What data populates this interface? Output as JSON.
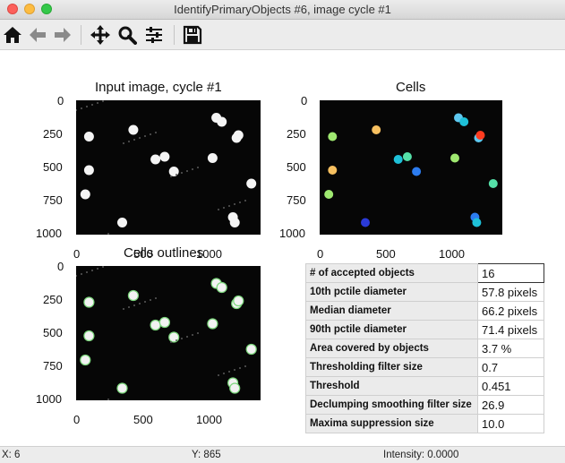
{
  "window": {
    "title": "IdentifyPrimaryObjects #6, image cycle #1"
  },
  "toolbar": {
    "buttons": [
      "home-icon",
      "back-arrow-icon",
      "forward-arrow-icon",
      "pan-icon",
      "zoom-icon",
      "configure-subplots-icon",
      "save-icon"
    ]
  },
  "plots": {
    "input": {
      "title": "Input image, cycle #1",
      "yticks": [
        "0",
        "250",
        "500",
        "750",
        "1000"
      ],
      "xticks": [
        "0",
        "500",
        "1000"
      ]
    },
    "cells": {
      "title": "Cells",
      "yticks": [
        "0",
        "250",
        "500",
        "750",
        "1000"
      ],
      "xticks": [
        "0",
        "500",
        "1000"
      ]
    },
    "outlines": {
      "title": "Cells outlines",
      "yticks": [
        "0",
        "250",
        "500",
        "750",
        "1000"
      ],
      "xticks": [
        "0",
        "500",
        "1000"
      ]
    }
  },
  "measurements": [
    {
      "label": "# of accepted objects",
      "value": "16"
    },
    {
      "label": "10th pctile diameter",
      "value": "57.8 pixels"
    },
    {
      "label": "Median diameter",
      "value": "66.2 pixels"
    },
    {
      "label": "90th pctile diameter",
      "value": "71.4 pixels"
    },
    {
      "label": "Area covered by objects",
      "value": "3.7 %"
    },
    {
      "label": "Thresholding filter size",
      "value": "0.7"
    },
    {
      "label": "Threshold",
      "value": "0.451"
    },
    {
      "label": "Declumping smoothing filter size",
      "value": "26.9"
    },
    {
      "label": "Maxima suppression size",
      "value": "10.0"
    }
  ],
  "status": {
    "x": "X: 6",
    "y": "Y: 865",
    "intensity": "Intensity: 0.0000"
  },
  "colors": {
    "image_bg": "#060606",
    "outline": "#7bd67b",
    "label_colors": [
      "#5ec8f0",
      "#ff3b1f",
      "#9fe870",
      "#f7c060",
      "#2c7cf0",
      "#1ec0d8",
      "#55e0a8",
      "#2a3ad8"
    ]
  }
}
